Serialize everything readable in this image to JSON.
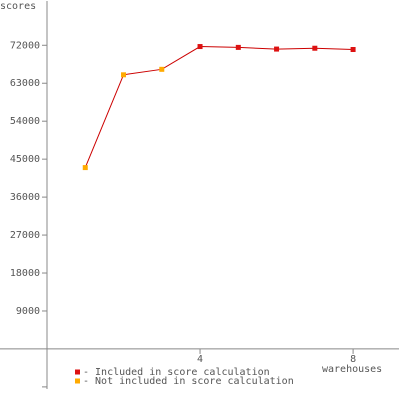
{
  "chart_data": {
    "type": "line",
    "y_label": "scores",
    "x_label": "warehouses",
    "x": [
      1,
      2,
      3,
      4,
      5,
      6,
      7,
      8
    ],
    "series": [
      {
        "name": "- Included in score calculation",
        "color": "#dd1111",
        "values": [
          null,
          null,
          null,
          71700,
          71500,
          71100,
          71300,
          71000
        ]
      },
      {
        "name": "- Not included in score calculation",
        "color": "#ffaa00",
        "values": [
          43000,
          65000,
          66300,
          null,
          null,
          null,
          null,
          null
        ]
      }
    ],
    "line_color": "#cc0000",
    "xlim": [
      0,
      9.2
    ],
    "xticks": [
      4,
      8
    ],
    "ylim": [
      -9500,
      82500
    ],
    "yticks": [
      {
        "value": -9000,
        "label": null
      },
      9000,
      18000,
      27000,
      36000,
      45000,
      54000,
      63000,
      72000
    ]
  }
}
